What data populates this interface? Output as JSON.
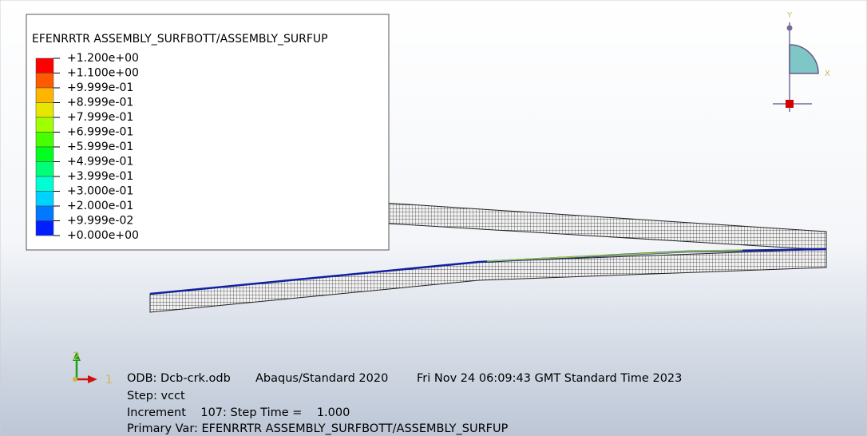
{
  "viewport": {
    "legend": {
      "title": "EFENRRTR ASSEMBLY_SURFBOTT/ASSEMBLY_SURFUP",
      "entries": [
        {
          "label": "+1.200e+00",
          "color": "#ff0000"
        },
        {
          "label": "+1.100e+00",
          "color": "#ff5a00"
        },
        {
          "label": "+9.999e-01",
          "color": "#ffb400"
        },
        {
          "label": "+8.999e-01",
          "color": "#e6e600"
        },
        {
          "label": "+7.999e-01",
          "color": "#a0ff00"
        },
        {
          "label": "+6.999e-01",
          "color": "#46ff00"
        },
        {
          "label": "+5.999e-01",
          "color": "#00ff1e"
        },
        {
          "label": "+4.999e-01",
          "color": "#00ff78"
        },
        {
          "label": "+3.999e-01",
          "color": "#00ffd2"
        },
        {
          "label": "+3.000e-01",
          "color": "#00d2ff"
        },
        {
          "label": "+2.000e-01",
          "color": "#0078ff"
        },
        {
          "label": "+9.999e-02",
          "color": "#001eff"
        },
        {
          "label": "+0.000e+00",
          "color": "#0000c8"
        }
      ]
    },
    "view_cube": {
      "y_label": "Y",
      "x_label": "X"
    },
    "triad": {
      "axis_2": "2",
      "axis_1": "1"
    },
    "info": {
      "odb": "ODB: Dcb-crk.odb",
      "version": "Abaqus/Standard 2020",
      "date": "Fri Nov 24 06:09:43 GMT Standard Time 2023",
      "step": "Step: vcct",
      "increment": "Increment    107: Step Time =    1.000",
      "primary_var": "Primary Var: EFENRRTR ASSEMBLY_SURFBOTT/ASSEMBLY_SURFUP"
    }
  }
}
